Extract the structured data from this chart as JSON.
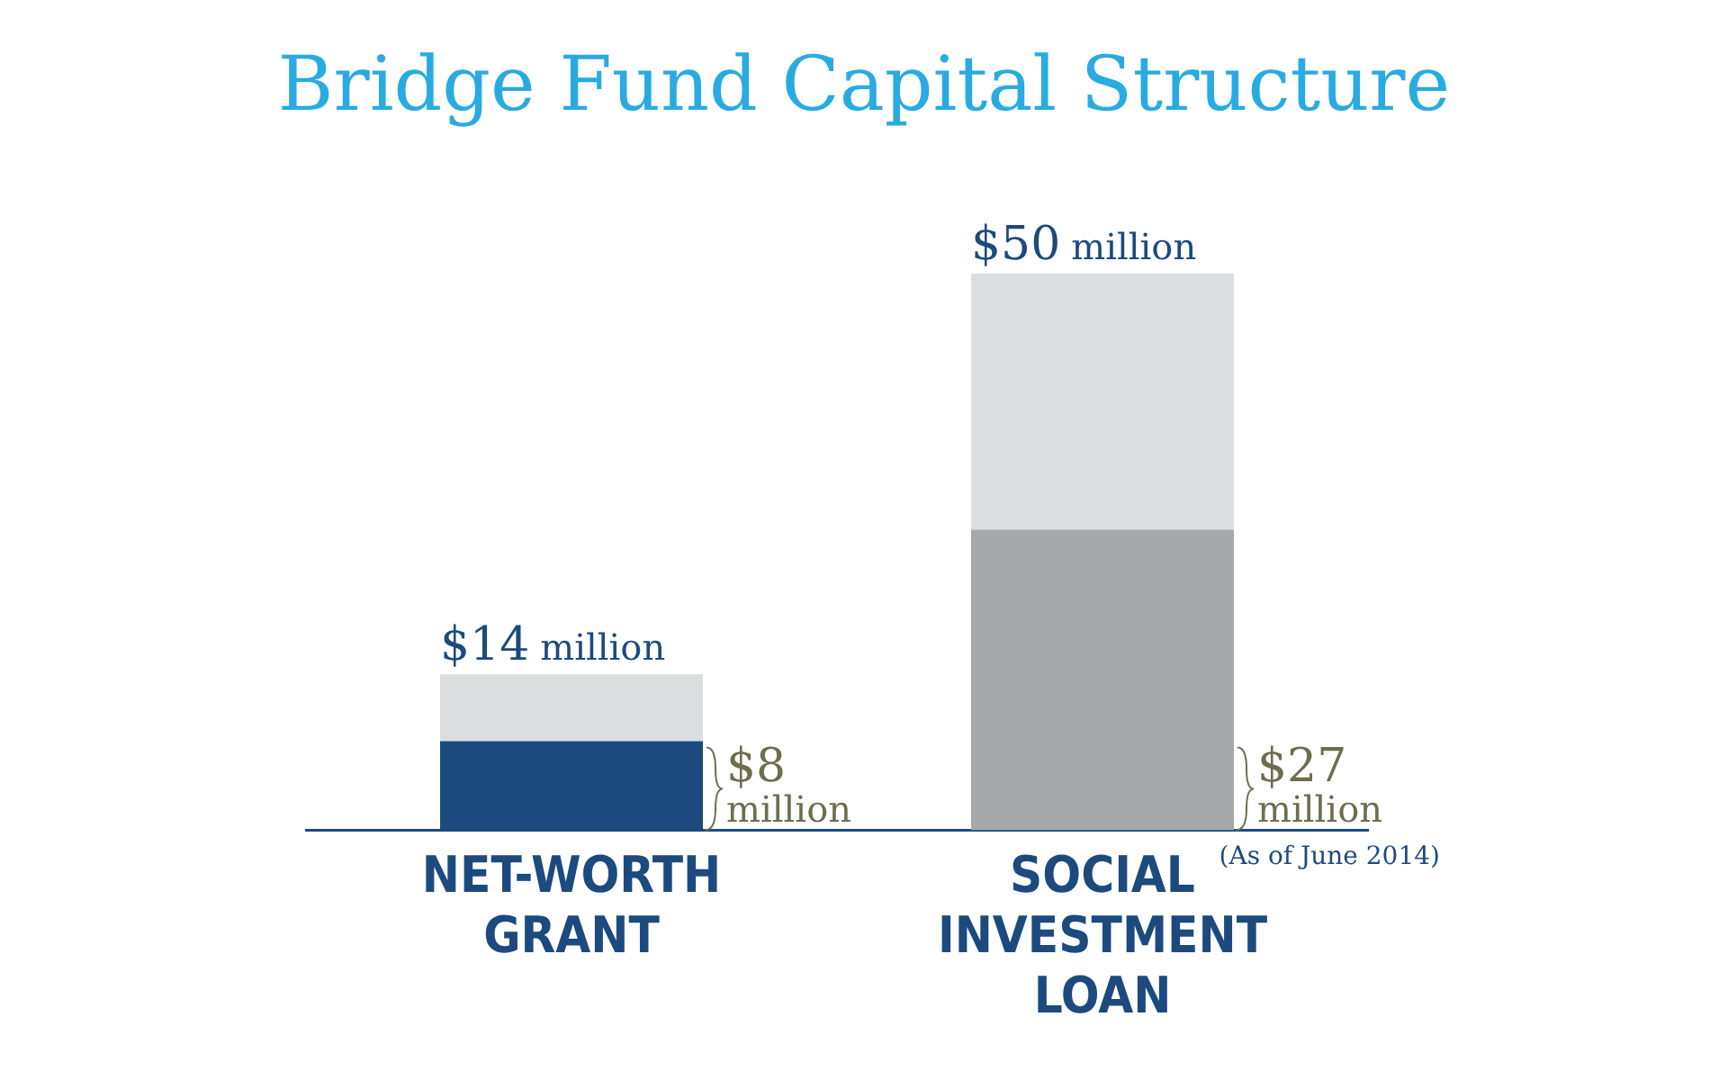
{
  "chart_data": {
    "type": "bar",
    "title": "Bridge Fund Capital Structure",
    "categories": [
      "NET-WORTH GRANT",
      "SOCIAL INVESTMENT LOAN"
    ],
    "stacked": true,
    "series": [
      {
        "colors": [
          "#1d4a7e",
          "#a7a8aa"
        ],
        "values": [
          8,
          27
        ],
        "value_labels": [
          "$8 million",
          "$27 million"
        ]
      },
      {
        "colors": [
          "#dcdddf",
          "#dcdddf"
        ],
        "values": [
          6,
          23
        ]
      }
    ],
    "totals": [
      "$14 million",
      "$50 million"
    ],
    "annotations": [
      "(As of June 2014)"
    ],
    "grid": false,
    "legend": false,
    "tick_labels": "x"
  }
}
